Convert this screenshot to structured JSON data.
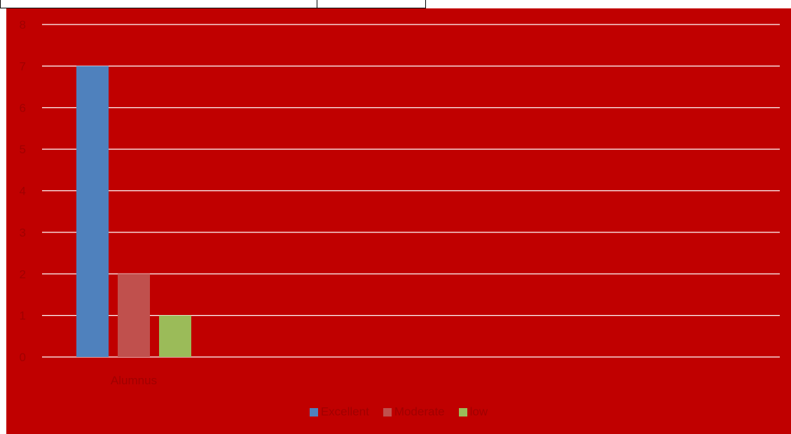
{
  "chart_data": {
    "type": "bar",
    "title": "",
    "xlabel": "",
    "ylabel": "",
    "categories": [
      "Alumnus"
    ],
    "series": [
      {
        "name": "Excellent",
        "values": [
          7
        ],
        "color": "#4f81bd"
      },
      {
        "name": "Moderate",
        "values": [
          2
        ],
        "color": "#c0504d"
      },
      {
        "name": "low",
        "values": [
          1
        ],
        "color": "#9bbb59"
      }
    ],
    "ylim": [
      0,
      8
    ],
    "yticks": [
      0,
      1,
      2,
      3,
      4,
      5,
      6,
      7,
      8
    ],
    "grid": true,
    "legend_position": "bottom",
    "background_color": "#c00000",
    "gridline_color": "#ffffff",
    "text_color": "#a00000"
  }
}
